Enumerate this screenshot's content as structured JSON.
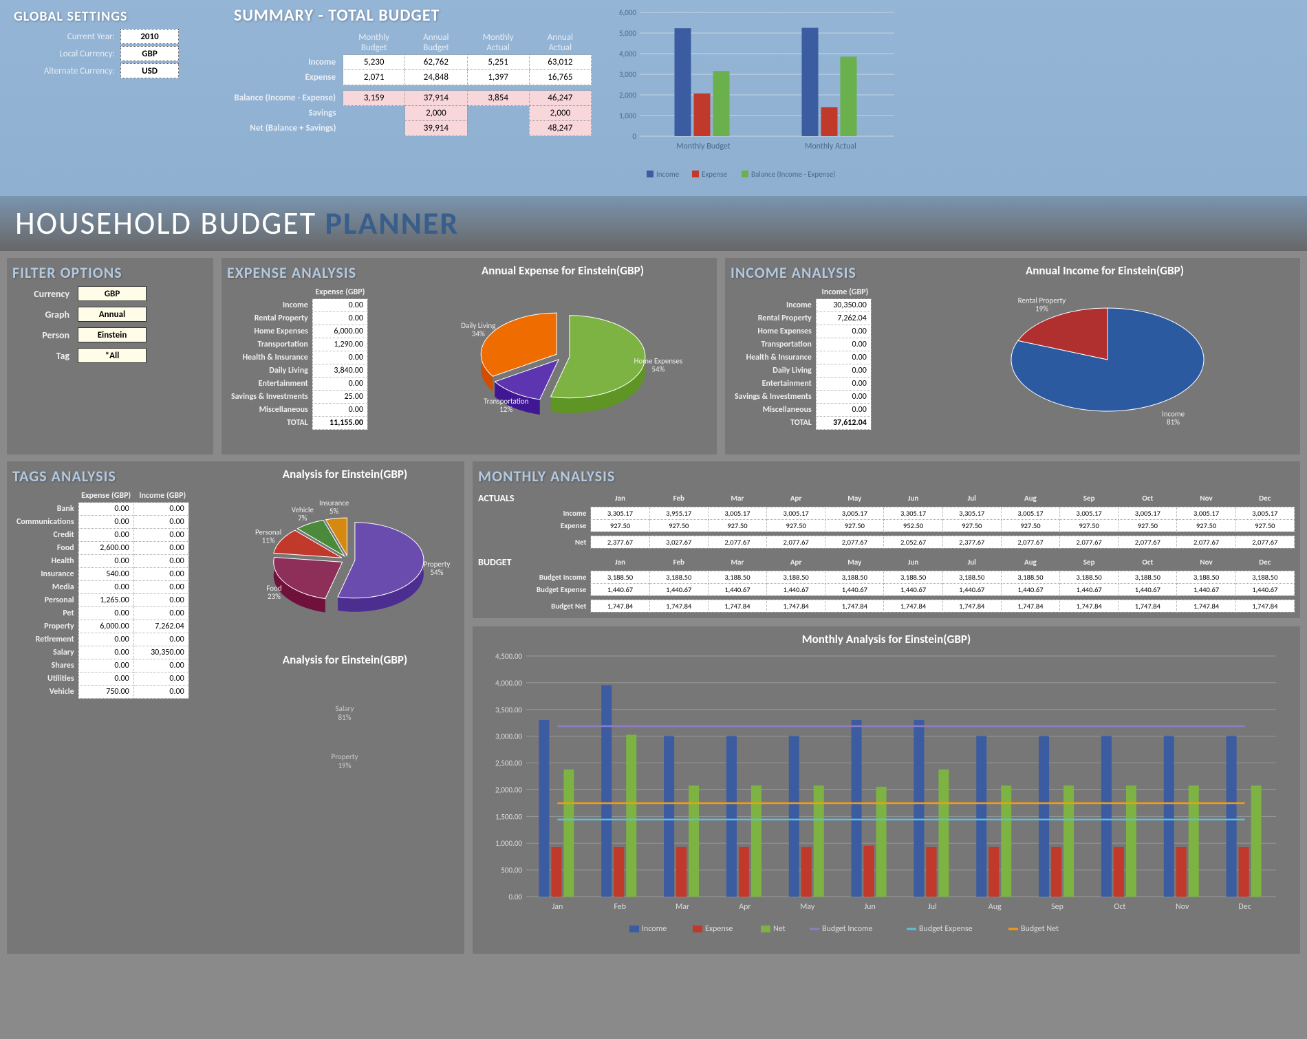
{
  "global_settings": {
    "title": "GLOBAL SETTINGS",
    "year_label": "Current Year:",
    "year": "2010",
    "local_label": "Local Currency:",
    "local": "GBP",
    "alt_label": "Alternate Currency:",
    "alt": "USD"
  },
  "summary": {
    "title": "SUMMARY - TOTAL BUDGET",
    "headers": [
      "Monthly Budget",
      "Annual Budget",
      "Monthly Actual",
      "Annual Actual"
    ],
    "rows": [
      {
        "label": "Income",
        "vals": [
          "5,230",
          "62,762",
          "5,251",
          "63,012"
        ]
      },
      {
        "label": "Expense",
        "vals": [
          "2,071",
          "24,848",
          "1,397",
          "16,765"
        ]
      }
    ],
    "balance": {
      "label": "Balance (Income - Expense)",
      "vals": [
        "3,159",
        "37,914",
        "3,854",
        "46,247"
      ]
    },
    "savings": {
      "label": "Savings",
      "vals": [
        "",
        "2,000",
        "",
        "2,000"
      ]
    },
    "net": {
      "label": "Net (Balance + Savings)",
      "vals": [
        "",
        "39,914",
        "",
        "48,247"
      ]
    }
  },
  "summary_chart": {
    "ymax": 6000,
    "ystep": 1000,
    "groups": [
      "Monthly Budget",
      "Monthly Actual"
    ],
    "series": [
      "Income",
      "Expense",
      "Balance (Income - Expense)"
    ],
    "colors": [
      "#3b5ca0",
      "#c0392b",
      "#6ab04c"
    ],
    "data": [
      [
        5230,
        2071,
        3159
      ],
      [
        5251,
        1397,
        3854
      ]
    ]
  },
  "big_title": {
    "a": "HOUSEHOLD BUDGET ",
    "b": "PLANNER"
  },
  "filter": {
    "title": "FILTER OPTIONS",
    "rows": [
      {
        "label": "Currency",
        "val": "GBP"
      },
      {
        "label": "Graph",
        "val": "Annual"
      },
      {
        "label": "Person",
        "val": "Einstein"
      },
      {
        "label": "Tag",
        "val": "*All"
      }
    ]
  },
  "expense": {
    "title": "EXPENSE ANALYSIS",
    "chart_title": "Annual Expense for Einstein(GBP)",
    "col": "Expense  (GBP)",
    "rows": [
      [
        "Income",
        "0.00"
      ],
      [
        "Rental Property",
        "0.00"
      ],
      [
        "Home Expenses",
        "6,000.00"
      ],
      [
        "Transportation",
        "1,290.00"
      ],
      [
        "Health & Insurance",
        "0.00"
      ],
      [
        "Daily Living",
        "3,840.00"
      ],
      [
        "Entertainment",
        "0.00"
      ],
      [
        "Savings & Investments",
        "25.00"
      ],
      [
        "Miscellaneous",
        "0.00"
      ]
    ],
    "total": [
      "TOTAL",
      "11,155.00"
    ],
    "pie": [
      {
        "label": "Home Expenses",
        "pct": 54,
        "color": "#7cb342"
      },
      {
        "label": "Transportation",
        "pct": 12,
        "color": "#5e35b1"
      },
      {
        "label": "Daily Living",
        "pct": 34,
        "color": "#ef6c00"
      },
      {
        "label": "Savings & Investments",
        "pct": 0,
        "color": "#888"
      }
    ]
  },
  "income": {
    "title": "INCOME ANALYSIS",
    "chart_title": "Annual Income for Einstein(GBP)",
    "col": "Income  (GBP)",
    "rows": [
      [
        "Income",
        "30,350.00"
      ],
      [
        "Rental Property",
        "7,262.04"
      ],
      [
        "Home Expenses",
        "0.00"
      ],
      [
        "Transportation",
        "0.00"
      ],
      [
        "Health & Insurance",
        "0.00"
      ],
      [
        "Daily Living",
        "0.00"
      ],
      [
        "Entertainment",
        "0.00"
      ],
      [
        "Savings & Investments",
        "0.00"
      ],
      [
        "Miscellaneous",
        "0.00"
      ]
    ],
    "total": [
      "TOTAL",
      "37,612.04"
    ],
    "pie": [
      {
        "label": "Income",
        "pct": 81,
        "color": "#2c5aa0"
      },
      {
        "label": "Rental Property",
        "pct": 19,
        "color": "#b03030"
      }
    ]
  },
  "tags": {
    "title": "TAGS ANALYSIS",
    "chart_title": "Analysis for Einstein(GBP)",
    "chart_title2": "Analysis for Einstein(GBP)",
    "cols": [
      "Expense  (GBP)",
      "Income  (GBP)"
    ],
    "rows": [
      [
        "Bank",
        "0.00",
        "0.00"
      ],
      [
        "Communications",
        "0.00",
        "0.00"
      ],
      [
        "Credit",
        "0.00",
        "0.00"
      ],
      [
        "Food",
        "2,600.00",
        "0.00"
      ],
      [
        "Health",
        "0.00",
        "0.00"
      ],
      [
        "Insurance",
        "540.00",
        "0.00"
      ],
      [
        "Media",
        "0.00",
        "0.00"
      ],
      [
        "Personal",
        "1,265.00",
        "0.00"
      ],
      [
        "Pet",
        "0.00",
        "0.00"
      ],
      [
        "Property",
        "6,000.00",
        "7,262.04"
      ],
      [
        "Retirement",
        "0.00",
        "0.00"
      ],
      [
        "Salary",
        "0.00",
        "30,350.00"
      ],
      [
        "Shares",
        "0.00",
        "0.00"
      ],
      [
        "Utilities",
        "0.00",
        "0.00"
      ],
      [
        "Vehicle",
        "750.00",
        "0.00"
      ]
    ],
    "pie": [
      {
        "label": "Property",
        "pct": 54,
        "color": "#6a4caf"
      },
      {
        "label": "Food",
        "pct": 23,
        "color": "#8e2f5a"
      },
      {
        "label": "Personal",
        "pct": 11,
        "color": "#c0392b"
      },
      {
        "label": "Vehicle",
        "pct": 7,
        "color": "#4a8a3a"
      },
      {
        "label": "Insurance",
        "pct": 5,
        "color": "#d68910"
      }
    ],
    "pie2": [
      {
        "label": "Salary",
        "pct": 81
      },
      {
        "label": "Property",
        "pct": 19
      }
    ]
  },
  "monthly": {
    "title": "MONTHLY ANALYSIS",
    "months": [
      "Jan",
      "Feb",
      "Mar",
      "Apr",
      "May",
      "Jun",
      "Jul",
      "Aug",
      "Sep",
      "Oct",
      "Nov",
      "Dec"
    ],
    "actuals_label": "ACTUALS",
    "budget_label": "BUDGET",
    "actuals": [
      {
        "label": "Income",
        "vals": [
          "3,305.17",
          "3,955.17",
          "3,005.17",
          "3,005.17",
          "3,005.17",
          "3,305.17",
          "3,305.17",
          "3,005.17",
          "3,005.17",
          "3,005.17",
          "3,005.17",
          "3,005.17"
        ]
      },
      {
        "label": "Expense",
        "vals": [
          "927.50",
          "927.50",
          "927.50",
          "927.50",
          "927.50",
          "952.50",
          "927.50",
          "927.50",
          "927.50",
          "927.50",
          "927.50",
          "927.50"
        ]
      }
    ],
    "actuals_net": {
      "label": "Net",
      "vals": [
        "2,377.67",
        "3,027.67",
        "2,077.67",
        "2,077.67",
        "2,077.67",
        "2,052.67",
        "2,377.67",
        "2,077.67",
        "2,077.67",
        "2,077.67",
        "2,077.67",
        "2,077.67"
      ]
    },
    "budget": [
      {
        "label": "Budget Income",
        "vals": [
          "3,188.50",
          "3,188.50",
          "3,188.50",
          "3,188.50",
          "3,188.50",
          "3,188.50",
          "3,188.50",
          "3,188.50",
          "3,188.50",
          "3,188.50",
          "3,188.50",
          "3,188.50"
        ]
      },
      {
        "label": "Budget Expense",
        "vals": [
          "1,440.67",
          "1,440.67",
          "1,440.67",
          "1,440.67",
          "1,440.67",
          "1,440.67",
          "1,440.67",
          "1,440.67",
          "1,440.67",
          "1,440.67",
          "1,440.67",
          "1,440.67"
        ]
      }
    ],
    "budget_net": {
      "label": "Budget Net",
      "vals": [
        "1,747.84",
        "1,747.84",
        "1,747.84",
        "1,747.84",
        "1,747.84",
        "1,747.84",
        "1,747.84",
        "1,747.84",
        "1,747.84",
        "1,747.84",
        "1,747.84",
        "1,747.84"
      ]
    },
    "chart": {
      "title": "Monthly Analysis for Einstein(GBP)",
      "ymax": 4500,
      "ystep": 500,
      "series": [
        {
          "name": "Income",
          "type": "bar",
          "color": "#3b5ca0",
          "data": [
            3305,
            3955,
            3005,
            3005,
            3005,
            3305,
            3305,
            3005,
            3005,
            3005,
            3005,
            3005
          ]
        },
        {
          "name": "Expense",
          "type": "bar",
          "color": "#c0392b",
          "data": [
            928,
            928,
            928,
            928,
            928,
            953,
            928,
            928,
            928,
            928,
            928,
            928
          ]
        },
        {
          "name": "Net",
          "type": "bar",
          "color": "#7cb342",
          "data": [
            2378,
            3028,
            2078,
            2078,
            2078,
            2053,
            2378,
            2078,
            2078,
            2078,
            2078,
            2078
          ]
        },
        {
          "name": "Budget Income",
          "type": "line",
          "color": "#8e7cc3",
          "data": [
            3189,
            3189,
            3189,
            3189,
            3189,
            3189,
            3189,
            3189,
            3189,
            3189,
            3189,
            3189
          ]
        },
        {
          "name": "Budget Expense",
          "type": "line",
          "color": "#5bc0de",
          "data": [
            1441,
            1441,
            1441,
            1441,
            1441,
            1441,
            1441,
            1441,
            1441,
            1441,
            1441,
            1441
          ]
        },
        {
          "name": "Budget Net",
          "type": "line",
          "color": "#f39c12",
          "data": [
            1748,
            1748,
            1748,
            1748,
            1748,
            1748,
            1748,
            1748,
            1748,
            1748,
            1748,
            1748
          ]
        }
      ]
    }
  }
}
